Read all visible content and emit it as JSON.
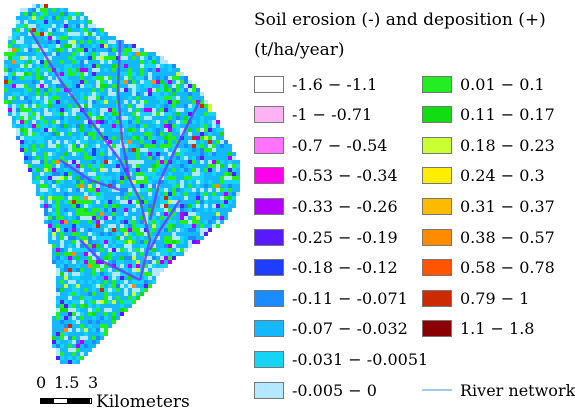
{
  "legend": {
    "title": "Soil erosion (-) and deposition (+)",
    "unit": "(t/ha/year)",
    "left_column": [
      {
        "label": "-1.6 − -1.1",
        "color": "#ffffff"
      },
      {
        "label": "-1 − -0.71",
        "color": "#ffb3f5"
      },
      {
        "label": "-0.7 − -0.54",
        "color": "#ff73ff"
      },
      {
        "label": "-0.53 − -0.34",
        "color": "#ff00ea"
      },
      {
        "label": "-0.33 − -0.26",
        "color": "#b300ff"
      },
      {
        "label": "-0.25 − -0.19",
        "color": "#5a1aff"
      },
      {
        "label": "-0.18 − -0.12",
        "color": "#1f3dff"
      },
      {
        "label": "-0.11 − -0.071",
        "color": "#1a8cff"
      },
      {
        "label": "-0.07 − -0.032",
        "color": "#14b8ff"
      },
      {
        "label": "-0.031 − -0.0051",
        "color": "#16d4f5"
      },
      {
        "label": "-0.005 − 0",
        "color": "#b4e8ff"
      }
    ],
    "right_column": [
      {
        "label": "0.01 − 0.1",
        "color": "#22ee22"
      },
      {
        "label": "0.11 − 0.17",
        "color": "#11dd11"
      },
      {
        "label": "0.18 − 0.23",
        "color": "#c9ff33"
      },
      {
        "label": "0.24 − 0.3",
        "color": "#ffee00"
      },
      {
        "label": "0.31 − 0.37",
        "color": "#ffbb00"
      },
      {
        "label": "0.38 − 0.57",
        "color": "#ff8c00"
      },
      {
        "label": "0.58 − 0.78",
        "color": "#ff5500"
      },
      {
        "label": "0.79 − 1",
        "color": "#cc2a00"
      },
      {
        "label": "1.1 − 1.8",
        "color": "#8b0000"
      }
    ],
    "river_label": "River network",
    "river_color": "#9ccaf0"
  },
  "scale": {
    "ticks": [
      "0",
      "1.5",
      "3"
    ],
    "unit": "Kilometers"
  }
}
